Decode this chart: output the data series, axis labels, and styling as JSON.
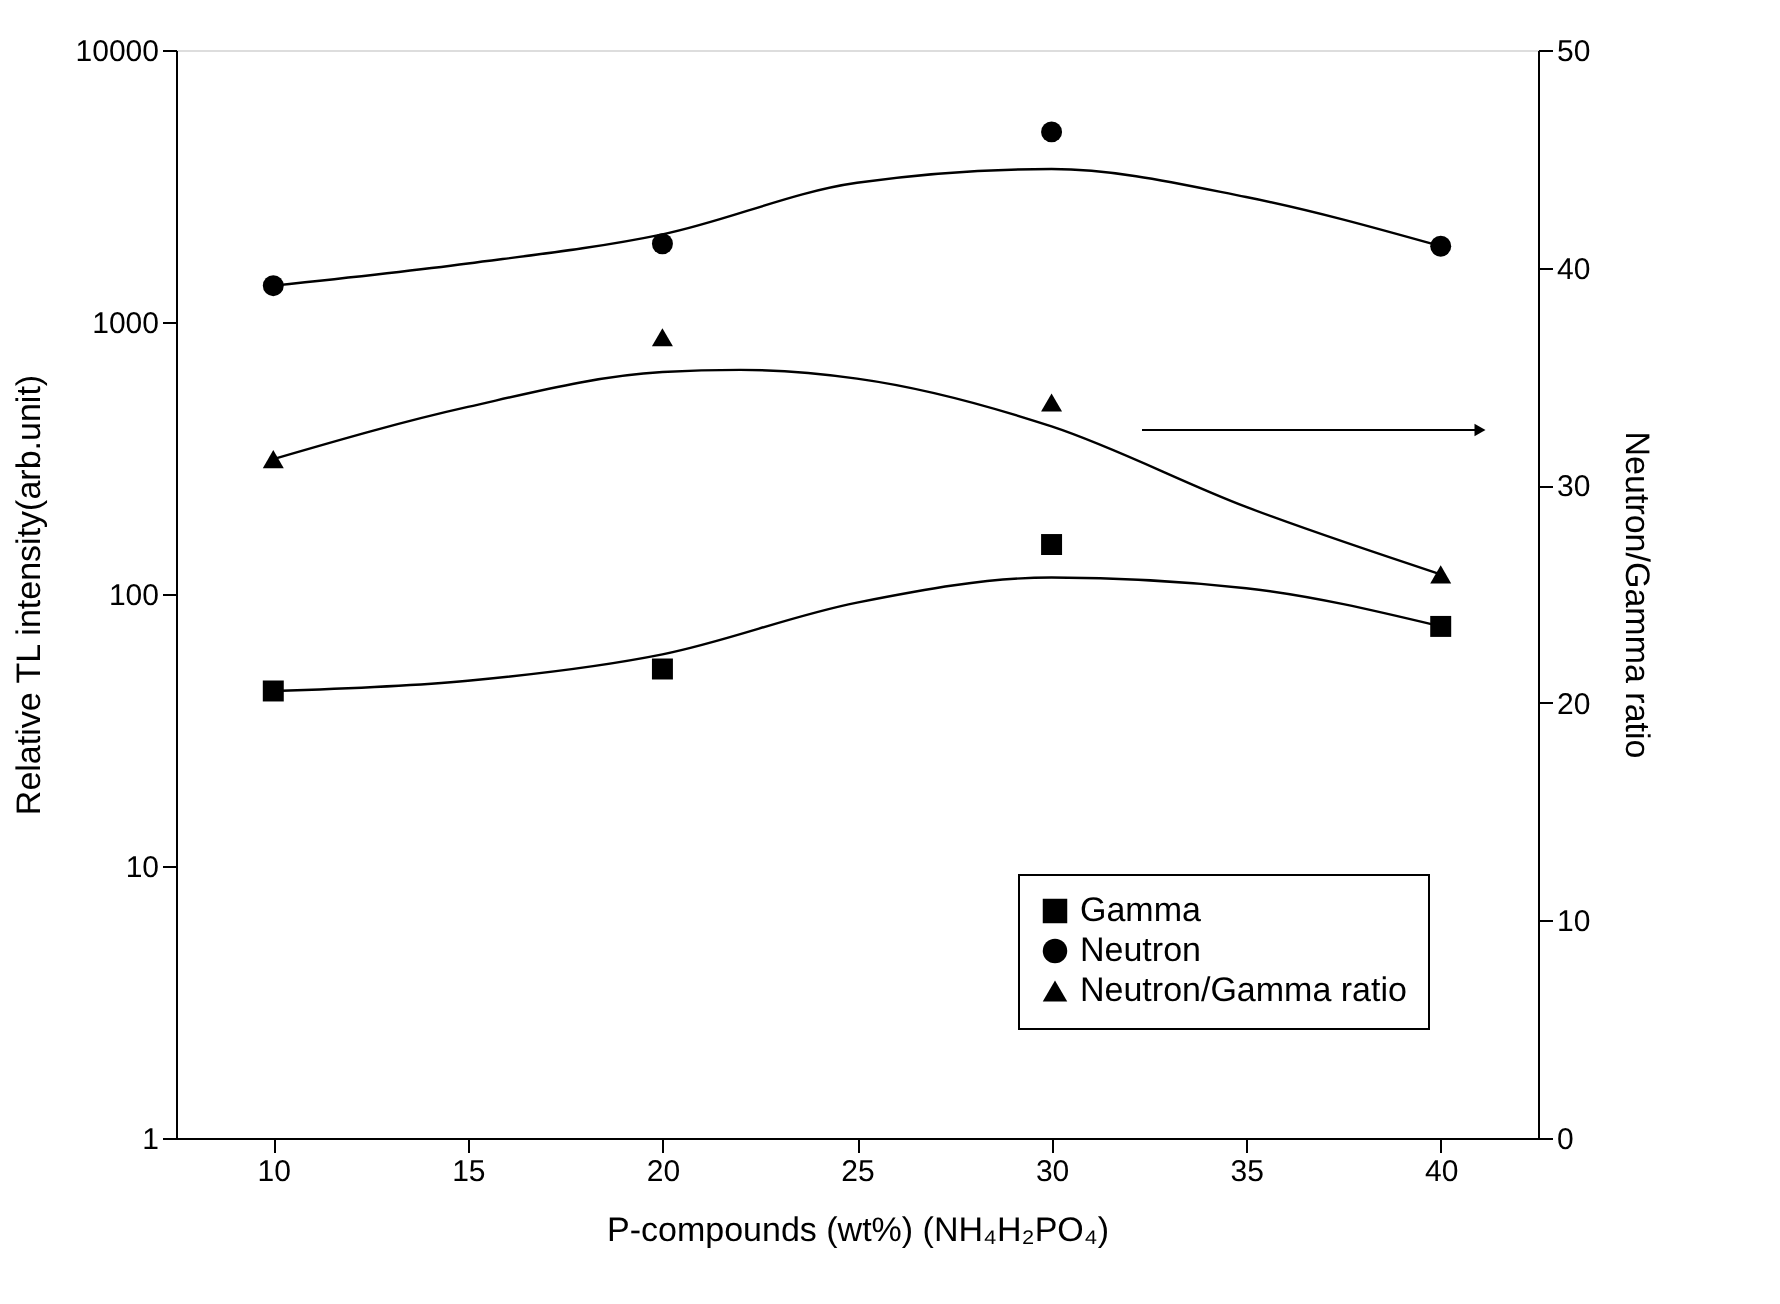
{
  "chart_data": {
    "type": "scatter",
    "xlabel": "P-compounds (wt%) (NH₄H₂PO₄)",
    "ylabel": "Relative TL intensity(arb.unit)",
    "y2label": "Neutron/Gamma ratio",
    "x": [
      10,
      20,
      30,
      40
    ],
    "xlim": [
      7.5,
      42.5
    ],
    "xticks": [
      10,
      15,
      20,
      25,
      30,
      35,
      40
    ],
    "ylim": [
      1,
      10000
    ],
    "yticks": [
      1,
      10,
      100,
      1000,
      10000
    ],
    "log": "y",
    "y2lim": [
      0,
      50
    ],
    "y2ticks": [
      0,
      10,
      20,
      30,
      40,
      50
    ],
    "grid": false,
    "legend": "bottom right",
    "series": [
      {
        "name": "Gamma",
        "marker": "square",
        "color": "#000000",
        "values": [
          44,
          53,
          152,
          76
        ]
      },
      {
        "name": "Neutron",
        "marker": "circle",
        "color": "#000000",
        "values": [
          1360,
          1940,
          5000,
          1900
        ]
      },
      {
        "name": "Neutron/Gamma ratio",
        "marker": "triangle",
        "color": "#000000",
        "axis": "y2",
        "values": [
          31.2,
          36.8,
          33.8,
          25.9
        ]
      },
      {
        "type": "line",
        "marker": "none",
        "color": "#000000",
        "x": [
          10,
          15,
          20,
          25,
          30,
          35,
          40
        ],
        "values": [
          44,
          48,
          60,
          93,
          115,
          105,
          76
        ]
      },
      {
        "type": "line",
        "marker": "none",
        "color": "#000000",
        "x": [
          10,
          15,
          20,
          25,
          30,
          35,
          40
        ],
        "values": [
          1360,
          1640,
          2100,
          3250,
          3650,
          2880,
          1900
        ]
      },
      {
        "type": "line",
        "marker": "none",
        "color": "#000000",
        "axis": "y2",
        "x": [
          10,
          15,
          20,
          22,
          25,
          30,
          35,
          40
        ],
        "values": [
          31.2,
          33.6,
          35.2,
          35.3,
          34.9,
          32.7,
          29.0,
          25.9
        ]
      }
    ]
  }
}
